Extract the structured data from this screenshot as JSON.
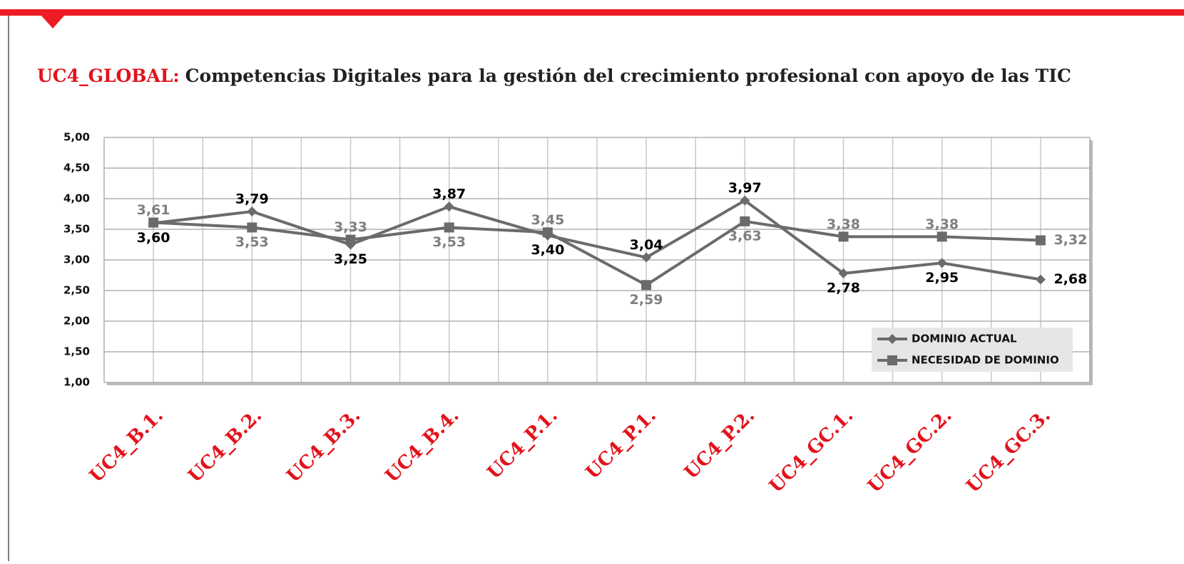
{
  "chart_data": {
    "type": "line",
    "title_prefix": "UC4_GLOBAL:",
    "title": "Competencias Digitales para la gestión del crecimiento profesional con apoyo de las TIC",
    "categories": [
      "UC4_B.1.",
      "UC4_B.2.",
      "UC4_B.3.",
      "UC4_B.4.",
      "UC4_P.1.",
      "UC4_P.1.",
      "UC4_P.2.",
      "UC4_GC.1.",
      "UC4_GC.2.",
      "UC4_GC.3."
    ],
    "series": [
      {
        "name": "DOMINIO ACTUAL",
        "color": "#6b6b6b",
        "marker": "diamond",
        "label_color": "#000000",
        "values": [
          3.6,
          3.79,
          3.25,
          3.87,
          3.4,
          3.04,
          3.97,
          2.78,
          2.95,
          2.68
        ],
        "value_labels": [
          "3,60",
          "3,79",
          "3,25",
          "3,87",
          "3,40",
          "3,04",
          "3,97",
          "2,78",
          "2,95",
          "2,68"
        ]
      },
      {
        "name": "NECESIDAD DE DOMINIO",
        "color": "#6b6b6b",
        "marker": "square",
        "label_color": "#7f7f7f",
        "values": [
          3.61,
          3.53,
          3.33,
          3.53,
          3.45,
          2.59,
          3.63,
          3.38,
          3.38,
          3.32
        ],
        "value_labels": [
          "3,61",
          "3,53",
          "3,33",
          "3,53",
          "3,45",
          "2,59",
          "3,63",
          "3,38",
          "3,38",
          "3,32"
        ]
      }
    ],
    "ylim": [
      1,
      5
    ],
    "yticks": [
      {
        "value": 1,
        "label": "1,00"
      },
      {
        "value": 1.5,
        "label": "1,50"
      },
      {
        "value": 2,
        "label": "2,00"
      },
      {
        "value": 2.5,
        "label": "2,50"
      },
      {
        "value": 3,
        "label": "3,00"
      },
      {
        "value": 3.5,
        "label": "3,50"
      },
      {
        "value": 4,
        "label": "4,00"
      },
      {
        "value": 4.5,
        "label": "4,50"
      },
      {
        "value": 5,
        "label": "5,00"
      }
    ],
    "grid": true,
    "legend": "lower right",
    "category_color": "#e3121b"
  }
}
